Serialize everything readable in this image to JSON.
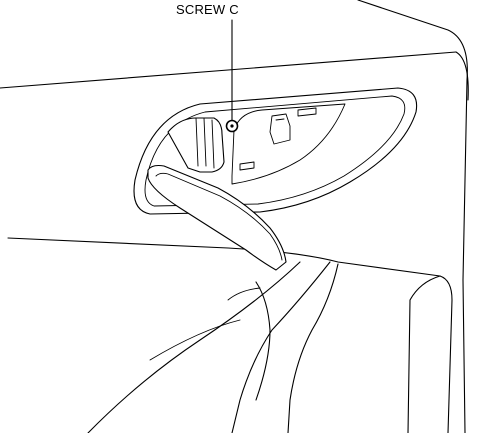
{
  "callouts": {
    "screw_c": "SCREW C"
  },
  "colors": {
    "line": "#000000",
    "background": "#ffffff"
  }
}
